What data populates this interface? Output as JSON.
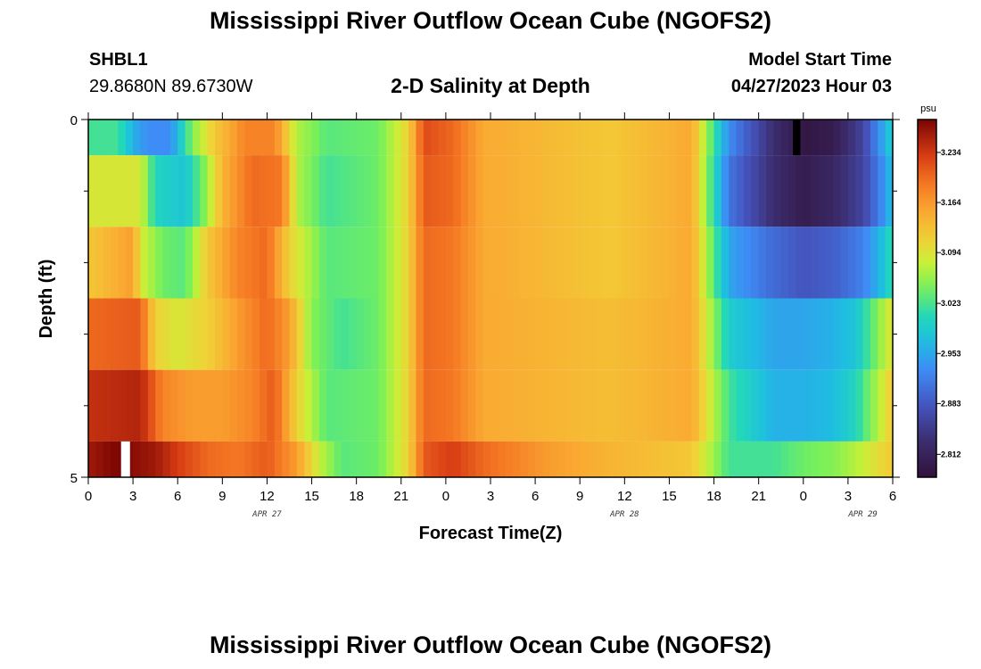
{
  "header": {
    "title": "Mississippi River Outflow Ocean Cube (NGOFS2)",
    "station_id": "SHBL1",
    "station_coords": "29.8680N  89.6730W",
    "subtitle": "2-D Salinity at Depth",
    "model_label": "Model Start Time",
    "model_time": "04/27/2023 Hour 03"
  },
  "footer": {
    "title": "Mississippi River Outflow Ocean Cube (NGOFS2)"
  },
  "chart_data": {
    "type": "heatmap",
    "title": "2-D Salinity at Depth",
    "xlabel": "Forecast Time(Z)",
    "ylabel": "Depth (ft)",
    "x_tick_labels": [
      "0",
      "3",
      "6",
      "9",
      "12",
      "15",
      "18",
      "21",
      "0",
      "3",
      "6",
      "9",
      "12",
      "15",
      "18",
      "21",
      "0",
      "3",
      "6"
    ],
    "x_date_labels": [
      {
        "label": "APR 27",
        "hour": 12
      },
      {
        "label": "APR 28",
        "hour": 36
      },
      {
        "label": "APR 29",
        "hour": 52
      }
    ],
    "y_tick_labels": [
      "0",
      "5"
    ],
    "ylim": [
      0,
      5
    ],
    "xlim_hours": [
      0,
      54
    ],
    "colorbar": {
      "unit": "psu",
      "min": 2.78,
      "max": 3.28,
      "tick_labels": [
        "3.234",
        "3.164",
        "3.094",
        "3.023",
        "2.953",
        "2.883",
        "2.812"
      ],
      "tick_values": [
        3.234,
        3.164,
        3.094,
        3.023,
        2.953,
        2.883,
        2.812
      ]
    },
    "rows": [
      {
        "depth_range": [
          0,
          0.5
        ],
        "knots": [
          [
            0,
            3.02
          ],
          [
            2,
            3.02
          ],
          [
            3,
            2.96
          ],
          [
            4,
            2.93
          ],
          [
            5.5,
            2.93
          ],
          [
            7,
            3.05
          ],
          [
            8.5,
            3.12
          ],
          [
            10.5,
            3.18
          ],
          [
            12.5,
            3.18
          ],
          [
            14,
            3.07
          ],
          [
            16,
            3.03
          ],
          [
            19.5,
            3.04
          ],
          [
            21.5,
            3.11
          ],
          [
            22.5,
            3.22
          ],
          [
            24.5,
            3.2
          ],
          [
            26.5,
            3.15
          ],
          [
            35,
            3.12
          ],
          [
            40.5,
            3.15
          ],
          [
            43,
            2.93
          ],
          [
            46,
            2.83
          ],
          [
            48,
            2.79
          ],
          [
            50,
            2.8
          ],
          [
            52,
            2.86
          ],
          [
            53.5,
            2.96
          ],
          [
            54,
            3.0
          ]
        ],
        "gaps": [
          {
            "from": 47.3,
            "to": 47.8,
            "color": "#000000"
          }
        ]
      },
      {
        "depth_range": [
          0.5,
          1.5
        ],
        "knots": [
          [
            0,
            3.09
          ],
          [
            3.5,
            3.09
          ],
          [
            4.5,
            3.0
          ],
          [
            6.5,
            2.98
          ],
          [
            7.8,
            3.05
          ],
          [
            9,
            3.14
          ],
          [
            11,
            3.2
          ],
          [
            13,
            3.19
          ],
          [
            14,
            3.07
          ],
          [
            16,
            3.02
          ],
          [
            19.5,
            3.04
          ],
          [
            21.5,
            3.11
          ],
          [
            22.5,
            3.21
          ],
          [
            24.5,
            3.2
          ],
          [
            26.5,
            3.15
          ],
          [
            35,
            3.12
          ],
          [
            40.5,
            3.15
          ],
          [
            43,
            2.91
          ],
          [
            46,
            2.83
          ],
          [
            48,
            2.8
          ],
          [
            50,
            2.82
          ],
          [
            52,
            2.86
          ],
          [
            53.5,
            2.94
          ],
          [
            54,
            2.98
          ]
        ]
      },
      {
        "depth_range": [
          1.5,
          2.5
        ],
        "knots": [
          [
            0,
            3.12
          ],
          [
            3,
            3.16
          ],
          [
            3.5,
            3.09
          ],
          [
            5,
            3.04
          ],
          [
            6.5,
            3.03
          ],
          [
            8,
            3.12
          ],
          [
            10,
            3.18
          ],
          [
            12,
            3.2
          ],
          [
            13.5,
            3.11
          ],
          [
            16,
            3.03
          ],
          [
            19.5,
            3.04
          ],
          [
            21.5,
            3.11
          ],
          [
            22.5,
            3.2
          ],
          [
            24.5,
            3.19
          ],
          [
            26.5,
            3.15
          ],
          [
            35,
            3.12
          ],
          [
            40.5,
            3.15
          ],
          [
            43,
            2.95
          ],
          [
            46,
            2.9
          ],
          [
            48,
            2.88
          ],
          [
            50,
            2.89
          ],
          [
            52,
            2.92
          ],
          [
            53.5,
            2.98
          ],
          [
            54,
            3.02
          ]
        ]
      },
      {
        "depth_range": [
          2.5,
          3.5
        ],
        "knots": [
          [
            0,
            3.2
          ],
          [
            3.5,
            3.21
          ],
          [
            4.5,
            3.11
          ],
          [
            6,
            3.09
          ],
          [
            8,
            3.11
          ],
          [
            10,
            3.16
          ],
          [
            12,
            3.2
          ],
          [
            13.5,
            3.16
          ],
          [
            15,
            3.05
          ],
          [
            17,
            3.02
          ],
          [
            19.5,
            3.04
          ],
          [
            21.5,
            3.11
          ],
          [
            22.5,
            3.2
          ],
          [
            24.5,
            3.19
          ],
          [
            26.5,
            3.15
          ],
          [
            35,
            3.13
          ],
          [
            40.5,
            3.15
          ],
          [
            43,
            2.99
          ],
          [
            46,
            2.95
          ],
          [
            48,
            2.95
          ],
          [
            50,
            2.96
          ],
          [
            51.5,
            2.98
          ],
          [
            53,
            3.05
          ],
          [
            54,
            3.1
          ]
        ]
      },
      {
        "depth_range": [
          3.5,
          4.5
        ],
        "knots": [
          [
            0,
            3.24
          ],
          [
            3.5,
            3.25
          ],
          [
            5,
            3.18
          ],
          [
            7,
            3.16
          ],
          [
            9,
            3.16
          ],
          [
            11,
            3.18
          ],
          [
            12.5,
            3.21
          ],
          [
            14,
            3.11
          ],
          [
            16,
            3.03
          ],
          [
            19.5,
            3.04
          ],
          [
            21.5,
            3.11
          ],
          [
            22.5,
            3.2
          ],
          [
            24.5,
            3.19
          ],
          [
            26.5,
            3.15
          ],
          [
            35,
            3.13
          ],
          [
            40.5,
            3.15
          ],
          [
            43,
            3.02
          ],
          [
            46,
            2.96
          ],
          [
            48,
            2.96
          ],
          [
            50,
            2.97
          ],
          [
            51.5,
            3.0
          ],
          [
            53,
            3.07
          ],
          [
            54,
            3.12
          ]
        ]
      },
      {
        "depth_range": [
          4.5,
          5
        ],
        "knots": [
          [
            0,
            3.26
          ],
          [
            2,
            3.28
          ],
          [
            4.5,
            3.26
          ],
          [
            6,
            3.23
          ],
          [
            8,
            3.2
          ],
          [
            10,
            3.19
          ],
          [
            12,
            3.21
          ],
          [
            14,
            3.16
          ],
          [
            15.5,
            3.08
          ],
          [
            17,
            3.03
          ],
          [
            19.5,
            3.04
          ],
          [
            21.5,
            3.11
          ],
          [
            22.5,
            3.21
          ],
          [
            24.5,
            3.23
          ],
          [
            26.5,
            3.2
          ],
          [
            31,
            3.16
          ],
          [
            35,
            3.14
          ],
          [
            40.5,
            3.12
          ],
          [
            43,
            3.02
          ],
          [
            46,
            3.02
          ],
          [
            48,
            3.04
          ],
          [
            50,
            3.05
          ],
          [
            52,
            3.08
          ],
          [
            54,
            3.12
          ]
        ],
        "gaps": [
          {
            "from": 2.2,
            "to": 2.8,
            "color": "#ffffff"
          }
        ]
      }
    ]
  }
}
